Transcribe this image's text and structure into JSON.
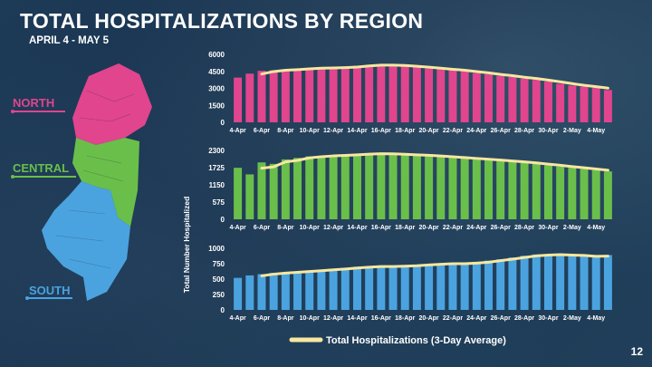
{
  "slide": {
    "title": "TOTAL HOSPITALIZATIONS BY REGION",
    "subtitle": "APRIL 4 - MAY 5",
    "page_number": "12"
  },
  "map": {
    "regions": [
      {
        "name": "NORTH",
        "color": "#e0458e"
      },
      {
        "name": "CENTRAL",
        "color": "#6abf4b"
      },
      {
        "name": "SOUTH",
        "color": "#4aa3df"
      }
    ]
  },
  "chart_data": [
    {
      "type": "bar",
      "region": "NORTH",
      "bar_color": "#e0458e",
      "line_color": "#f7e7a0",
      "x": [
        "4-Apr",
        "5-Apr",
        "6-Apr",
        "7-Apr",
        "8-Apr",
        "9-Apr",
        "10-Apr",
        "11-Apr",
        "12-Apr",
        "13-Apr",
        "14-Apr",
        "15-Apr",
        "16-Apr",
        "17-Apr",
        "18-Apr",
        "19-Apr",
        "20-Apr",
        "21-Apr",
        "22-Apr",
        "23-Apr",
        "24-Apr",
        "25-Apr",
        "26-Apr",
        "27-Apr",
        "28-Apr",
        "29-Apr",
        "30-Apr",
        "1-May",
        "2-May",
        "3-May",
        "4-May",
        "5-May"
      ],
      "tick_labels": [
        "4-Apr",
        "6-Apr",
        "8-Apr",
        "10-Apr",
        "12-Apr",
        "14-Apr",
        "16-Apr",
        "18-Apr",
        "20-Apr",
        "22-Apr",
        "24-Apr",
        "26-Apr",
        "28-Apr",
        "30-Apr",
        "2-May",
        "4-May"
      ],
      "ylim": [
        0,
        6000
      ],
      "yticks": [
        "6000",
        "4500",
        "3000",
        "1500",
        "0"
      ],
      "values": [
        3950,
        4300,
        4550,
        4600,
        4650,
        4700,
        4800,
        4850,
        4750,
        4900,
        5000,
        5050,
        5100,
        5000,
        4950,
        4900,
        4750,
        4700,
        4600,
        4500,
        4350,
        4250,
        4100,
        4000,
        3850,
        3750,
        3600,
        3400,
        3250,
        3150,
        3050,
        2850
      ],
      "avg_start_index": 2,
      "series_avg_name": "Total Hospitalizations (3-Day Average)"
    },
    {
      "type": "bar",
      "region": "CENTRAL",
      "bar_color": "#6abf4b",
      "line_color": "#f7e7a0",
      "x": [
        "4-Apr",
        "5-Apr",
        "6-Apr",
        "7-Apr",
        "8-Apr",
        "9-Apr",
        "10-Apr",
        "11-Apr",
        "12-Apr",
        "13-Apr",
        "14-Apr",
        "15-Apr",
        "16-Apr",
        "17-Apr",
        "18-Apr",
        "19-Apr",
        "20-Apr",
        "21-Apr",
        "22-Apr",
        "23-Apr",
        "24-Apr",
        "25-Apr",
        "26-Apr",
        "27-Apr",
        "28-Apr",
        "29-Apr",
        "30-Apr",
        "1-May",
        "2-May",
        "3-May",
        "4-May",
        "5-May"
      ],
      "tick_labels": [
        "4-Apr",
        "6-Apr",
        "8-Apr",
        "10-Apr",
        "12-Apr",
        "14-Apr",
        "16-Apr",
        "18-Apr",
        "20-Apr",
        "22-Apr",
        "24-Apr",
        "26-Apr",
        "28-Apr",
        "30-Apr",
        "2-May",
        "4-May"
      ],
      "ylim": [
        0,
        2300
      ],
      "yticks": [
        "2300",
        "1725",
        "1150",
        "575",
        "0"
      ],
      "values": [
        1720,
        1500,
        1900,
        1850,
        2000,
        2050,
        2100,
        2120,
        2130,
        2150,
        2180,
        2200,
        2190,
        2170,
        2150,
        2140,
        2120,
        2080,
        2060,
        2040,
        2000,
        1980,
        1950,
        1920,
        1880,
        1850,
        1800,
        1760,
        1720,
        1680,
        1640,
        1600
      ],
      "avg_start_index": 2,
      "series_avg_name": "Total Hospitalizations (3-Day Average)"
    },
    {
      "type": "bar",
      "region": "SOUTH",
      "bar_color": "#4aa3df",
      "line_color": "#f7e7a0",
      "x": [
        "4-Apr",
        "5-Apr",
        "6-Apr",
        "7-Apr",
        "8-Apr",
        "9-Apr",
        "10-Apr",
        "11-Apr",
        "12-Apr",
        "13-Apr",
        "14-Apr",
        "15-Apr",
        "16-Apr",
        "17-Apr",
        "18-Apr",
        "19-Apr",
        "20-Apr",
        "21-Apr",
        "22-Apr",
        "23-Apr",
        "24-Apr",
        "25-Apr",
        "26-Apr",
        "27-Apr",
        "28-Apr",
        "29-Apr",
        "30-Apr",
        "1-May",
        "2-May",
        "3-May",
        "4-May",
        "5-May"
      ],
      "tick_labels": [
        "4-Apr",
        "6-Apr",
        "8-Apr",
        "10-Apr",
        "12-Apr",
        "14-Apr",
        "16-Apr",
        "18-Apr",
        "20-Apr",
        "22-Apr",
        "24-Apr",
        "26-Apr",
        "28-Apr",
        "30-Apr",
        "2-May",
        "4-May"
      ],
      "ylim": [
        0,
        1000
      ],
      "yticks": [
        "1000",
        "750",
        "500",
        "250",
        "0"
      ],
      "values": [
        520,
        560,
        580,
        600,
        610,
        620,
        640,
        650,
        660,
        680,
        700,
        700,
        710,
        700,
        720,
        730,
        740,
        750,
        760,
        740,
        780,
        800,
        820,
        850,
        880,
        900,
        890,
        900,
        880,
        870,
        860,
        890
      ],
      "avg_start_index": 2,
      "series_avg_name": "Total Hospitalizations (3-Day Average)"
    }
  ],
  "y_axis_title": "Total Number Hospitalized",
  "legend": {
    "label": "Total Hospitalizations (3-Day Average)",
    "color": "#f7e7a0"
  }
}
